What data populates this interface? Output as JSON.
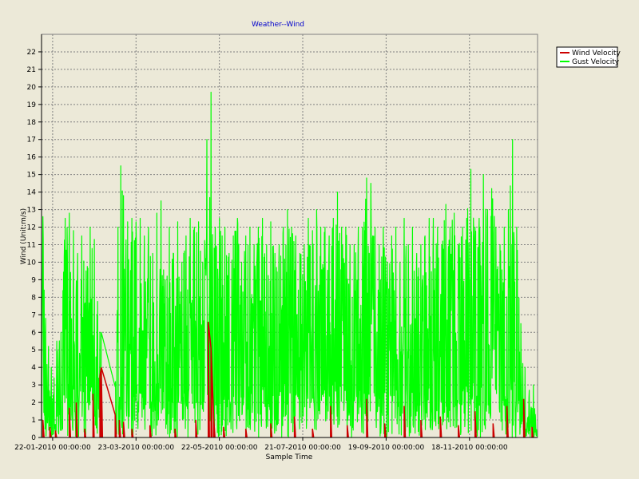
{
  "chart_data": {
    "type": "line",
    "title": "Weather--Wind",
    "xlabel": "Sample Time",
    "ylabel": "Wind (Unit:m/s)",
    "ylim": [
      0,
      23
    ],
    "yticks": [
      0,
      1,
      2,
      3,
      4,
      5,
      6,
      7,
      8,
      9,
      10,
      11,
      12,
      13,
      14,
      15,
      16,
      17,
      18,
      19,
      20,
      21,
      22
    ],
    "xlim": [
      "2010-01-14",
      "2011-01-06"
    ],
    "xticks": [
      {
        "label": "22-01-2010 00:00:00",
        "date": "2010-01-22"
      },
      {
        "label": "23-03-2010 00:00:00",
        "date": "2010-03-23"
      },
      {
        "label": "22-05-2010 00:00:00",
        "date": "2010-05-22"
      },
      {
        "label": "21-07-2010 00:00:00",
        "date": "2010-07-21"
      },
      {
        "label": "19-09-2010 00:00:00",
        "date": "2010-09-19"
      },
      {
        "label": "18-11-2010 00:00:00",
        "date": "2010-11-18"
      }
    ],
    "grid": true,
    "legend_position": "top-right",
    "series": [
      {
        "name": "Gust Velocity",
        "color": "#00ff00",
        "x": [
          "2010-01-15",
          "2010-01-17",
          "2010-01-19",
          "2010-01-21",
          "2010-01-23",
          "2010-01-25",
          "2010-01-28",
          "2010-01-31",
          "2010-02-03",
          "2010-02-06",
          "2010-02-09",
          "2010-02-12",
          "2010-02-15",
          "2010-02-18",
          "2010-02-21",
          "2010-02-25",
          "2010-02-26",
          "2010-03-08",
          "2010-03-10",
          "2010-03-12",
          "2010-03-14",
          "2010-03-17",
          "2010-03-20",
          "2010-03-23",
          "2010-03-26",
          "2010-03-29",
          "2010-04-01",
          "2010-04-04",
          "2010-04-07",
          "2010-04-10",
          "2010-04-13",
          "2010-04-16",
          "2010-04-19",
          "2010-04-22",
          "2010-04-25",
          "2010-04-28",
          "2010-05-01",
          "2010-05-04",
          "2010-05-07",
          "2010-05-10",
          "2010-05-13",
          "2010-05-16",
          "2010-05-19",
          "2010-05-22",
          "2010-05-24",
          "2010-05-26",
          "2010-05-29",
          "2010-06-01",
          "2010-06-04",
          "2010-06-07",
          "2010-06-10",
          "2010-06-13",
          "2010-06-16",
          "2010-06-19",
          "2010-06-22",
          "2010-06-25",
          "2010-06-28",
          "2010-07-01",
          "2010-07-04",
          "2010-07-07",
          "2010-07-10",
          "2010-07-13",
          "2010-07-16",
          "2010-07-19",
          "2010-07-22",
          "2010-07-25",
          "2010-07-28",
          "2010-07-31",
          "2010-08-03",
          "2010-08-06",
          "2010-08-09",
          "2010-08-12",
          "2010-08-15",
          "2010-08-18",
          "2010-08-21",
          "2010-08-24",
          "2010-08-27",
          "2010-08-30",
          "2010-09-02",
          "2010-09-05",
          "2010-09-08",
          "2010-09-11",
          "2010-09-14",
          "2010-09-17",
          "2010-09-20",
          "2010-09-23",
          "2010-09-26",
          "2010-09-29",
          "2010-10-02",
          "2010-10-05",
          "2010-10-08",
          "2010-10-11",
          "2010-10-14",
          "2010-10-17",
          "2010-10-20",
          "2010-10-23",
          "2010-10-26",
          "2010-10-29",
          "2010-11-01",
          "2010-11-04",
          "2010-11-07",
          "2010-11-10",
          "2010-11-13",
          "2010-11-16",
          "2010-11-19",
          "2010-11-22",
          "2010-11-25",
          "2010-11-28",
          "2010-12-01",
          "2010-12-04",
          "2010-12-07",
          "2010-12-10",
          "2010-12-13",
          "2010-12-16",
          "2010-12-19",
          "2010-12-22",
          "2010-12-25",
          "2010-12-28",
          "2010-12-31",
          "2011-01-03"
        ],
        "values": [
          12.6,
          6.8,
          5.2,
          4.0,
          3.4,
          5.5,
          6.0,
          12.5,
          12.8,
          11.8,
          10.5,
          11.5,
          9.5,
          12.0,
          11.3,
          6.0,
          6.0,
          2.9,
          12.0,
          15.5,
          13.8,
          12.3,
          12.5,
          12.3,
          12.5,
          11.5,
          12.0,
          10.5,
          12.8,
          13.5,
          9.0,
          12.0,
          10.5,
          12.3,
          10.0,
          11.5,
          12.5,
          12.0,
          12.3,
          10.0,
          17.0,
          19.7,
          12.0,
          12.5,
          11.5,
          12.0,
          10.5,
          11.5,
          12.5,
          10.0,
          11.5,
          12.0,
          11.0,
          12.0,
          12.5,
          11.0,
          12.3,
          10.5,
          11.0,
          12.0,
          13.0,
          12.0,
          11.5,
          10.5,
          11.0,
          12.5,
          11.8,
          13.0,
          12.0,
          12.0,
          11.5,
          12.5,
          14.0,
          12.0,
          12.0,
          11.0,
          11.0,
          12.0,
          12.0,
          14.8,
          14.5,
          12.0,
          11.0,
          12.0,
          10.0,
          11.5,
          12.0,
          10.0,
          12.5,
          11.0,
          12.0,
          10.5,
          11.0,
          11.5,
          12.5,
          12.5,
          12.0,
          11.0,
          13.3,
          12.0,
          12.8,
          11.0,
          12.0,
          12.5,
          15.3,
          12.0,
          12.5,
          15.0,
          13.0,
          14.2,
          12.0,
          11.0,
          12.0,
          13.0,
          17.0,
          12.0,
          6.5,
          4.0,
          2.7,
          3.0
        ]
      },
      {
        "name": "Wind Velocity",
        "color": "#cc0000",
        "x": [
          "2010-01-15",
          "2010-01-20",
          "2010-01-24",
          "2010-02-03",
          "2010-02-08",
          "2010-02-14",
          "2010-02-20",
          "2010-02-25",
          "2010-02-26",
          "2010-03-08",
          "2010-03-11",
          "2010-03-14",
          "2010-03-20",
          "2010-04-02",
          "2010-04-20",
          "2010-05-05",
          "2010-05-14",
          "2010-05-16",
          "2010-05-18",
          "2010-05-25",
          "2010-06-10",
          "2010-06-28",
          "2010-07-15",
          "2010-07-28",
          "2010-08-10",
          "2010-08-22",
          "2010-09-05",
          "2010-09-18",
          "2010-10-02",
          "2010-10-14",
          "2010-10-28",
          "2010-11-10",
          "2010-11-22",
          "2010-12-05",
          "2010-12-15",
          "2010-12-27",
          "2011-01-02"
        ],
        "values": [
          1.0,
          0.6,
          0.4,
          1.7,
          2.0,
          0.5,
          2.5,
          3.5,
          4.0,
          1.3,
          1.0,
          0.9,
          0.5,
          0.7,
          0.5,
          1.0,
          6.6,
          5.1,
          1.0,
          0.6,
          0.5,
          0.8,
          1.2,
          0.5,
          1.8,
          0.7,
          2.2,
          0.8,
          1.8,
          1.0,
          1.2,
          0.7,
          1.5,
          0.8,
          1.8,
          2.2,
          0.6
        ]
      }
    ]
  }
}
